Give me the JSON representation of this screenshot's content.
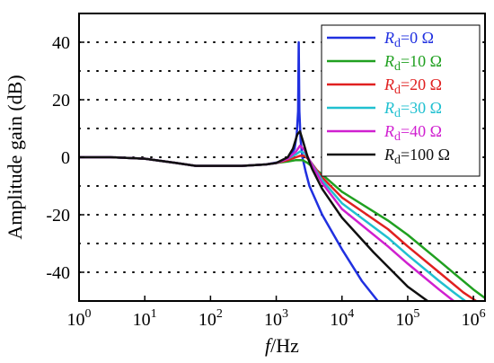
{
  "chart_data": {
    "type": "line",
    "xlabel_italic": "f",
    "xlabel_rest": "/Hz",
    "ylabel": "Amplitude gain (dB)",
    "xscale": "log",
    "xlim": [
      1,
      1500000
    ],
    "ylim": [
      -50,
      50
    ],
    "x_ticks": [
      {
        "base": "10",
        "exp": "0",
        "value": 1
      },
      {
        "base": "10",
        "exp": "1",
        "value": 10
      },
      {
        "base": "10",
        "exp": "2",
        "value": 100
      },
      {
        "base": "10",
        "exp": "3",
        "value": 1000
      },
      {
        "base": "10",
        "exp": "4",
        "value": 10000
      },
      {
        "base": "10",
        "exp": "5",
        "value": 100000
      },
      {
        "base": "10",
        "exp": "6",
        "value": 1000000
      }
    ],
    "y_ticks": [
      "40",
      "20",
      "0",
      "-20",
      "-40"
    ],
    "y_tick_values": [
      40,
      20,
      0,
      -20,
      -40
    ],
    "grid": true,
    "legend_position": "top-right",
    "series": [
      {
        "name_italic": "R",
        "name_sub": "d",
        "name_rest": "=0 Ω",
        "color": "#2030e0",
        "x": [
          1,
          3,
          10,
          30,
          60,
          100,
          300,
          700,
          1200,
          1600,
          1900,
          2050,
          2150,
          2200,
          2250,
          2350,
          2500,
          2800,
          3200,
          5000,
          10000,
          20000,
          35000
        ],
        "y": [
          0,
          0,
          -0.5,
          -2,
          -3,
          -3,
          -3,
          -2.5,
          -1.5,
          0,
          3,
          8,
          16,
          40,
          16,
          6,
          0,
          -5,
          -10,
          -20,
          -32,
          -43,
          -50
        ]
      },
      {
        "name_italic": "R",
        "name_sub": "d",
        "name_rest": "=10 Ω",
        "color": "#20a020",
        "x": [
          1,
          3,
          10,
          30,
          60,
          100,
          300,
          700,
          1000,
          1500,
          2000,
          2500,
          3000,
          5000,
          10000,
          50000,
          100000,
          300000,
          1000000,
          1500000
        ],
        "y": [
          0,
          0,
          -0.5,
          -2,
          -3,
          -3,
          -3,
          -2.5,
          -2,
          -1.5,
          -1,
          -1,
          -2,
          -6,
          -12,
          -22,
          -27,
          -36,
          -46,
          -49
        ]
      },
      {
        "name_italic": "R",
        "name_sub": "d",
        "name_rest": "=20 Ω",
        "color": "#e02020",
        "x": [
          1,
          3,
          10,
          30,
          60,
          100,
          300,
          700,
          1000,
          1500,
          2000,
          2300,
          2700,
          3200,
          5000,
          10000,
          50000,
          100000,
          300000,
          700000,
          1100000
        ],
        "y": [
          0,
          0,
          -0.5,
          -2,
          -3,
          -3,
          -3,
          -2.5,
          -2,
          -1,
          0,
          0.5,
          0.5,
          -1,
          -7,
          -14,
          -25,
          -31,
          -40,
          -47,
          -50
        ]
      },
      {
        "name_italic": "R",
        "name_sub": "d",
        "name_rest": "=30 Ω",
        "color": "#20c0d0",
        "x": [
          1,
          3,
          10,
          30,
          60,
          100,
          300,
          700,
          1000,
          1500,
          2000,
          2300,
          2700,
          3200,
          5000,
          10000,
          50000,
          100000,
          300000,
          500000,
          750000
        ],
        "y": [
          0,
          0,
          -0.5,
          -2,
          -3,
          -3,
          -3,
          -2.5,
          -2,
          -0.5,
          1,
          2,
          1.5,
          -1,
          -8,
          -16,
          -28,
          -34,
          -43,
          -47,
          -50
        ]
      },
      {
        "name_italic": "R",
        "name_sub": "d",
        "name_rest": "=40 Ω",
        "color": "#d020d0",
        "x": [
          1,
          3,
          10,
          30,
          60,
          100,
          300,
          700,
          1000,
          1500,
          2000,
          2300,
          2700,
          3200,
          5000,
          10000,
          50000,
          100000,
          300000,
          500000
        ],
        "y": [
          0,
          0,
          -0.5,
          -2,
          -3,
          -3,
          -3,
          -2.5,
          -2,
          -0.5,
          2,
          4,
          2.5,
          -1,
          -9,
          -18,
          -31,
          -37,
          -46,
          -50
        ]
      },
      {
        "name_italic": "R",
        "name_sub": "d",
        "name_rest": "=100 Ω",
        "color": "#101010",
        "x": [
          1,
          3,
          10,
          30,
          60,
          100,
          300,
          700,
          1000,
          1500,
          1800,
          2100,
          2300,
          2600,
          3000,
          3500,
          5000,
          10000,
          30000,
          100000,
          200000
        ],
        "y": [
          0,
          0,
          -0.5,
          -2,
          -3,
          -3,
          -3,
          -2.5,
          -2,
          0,
          3,
          8,
          9,
          5,
          0,
          -4,
          -11,
          -21,
          -33,
          -45,
          -50
        ]
      }
    ]
  }
}
